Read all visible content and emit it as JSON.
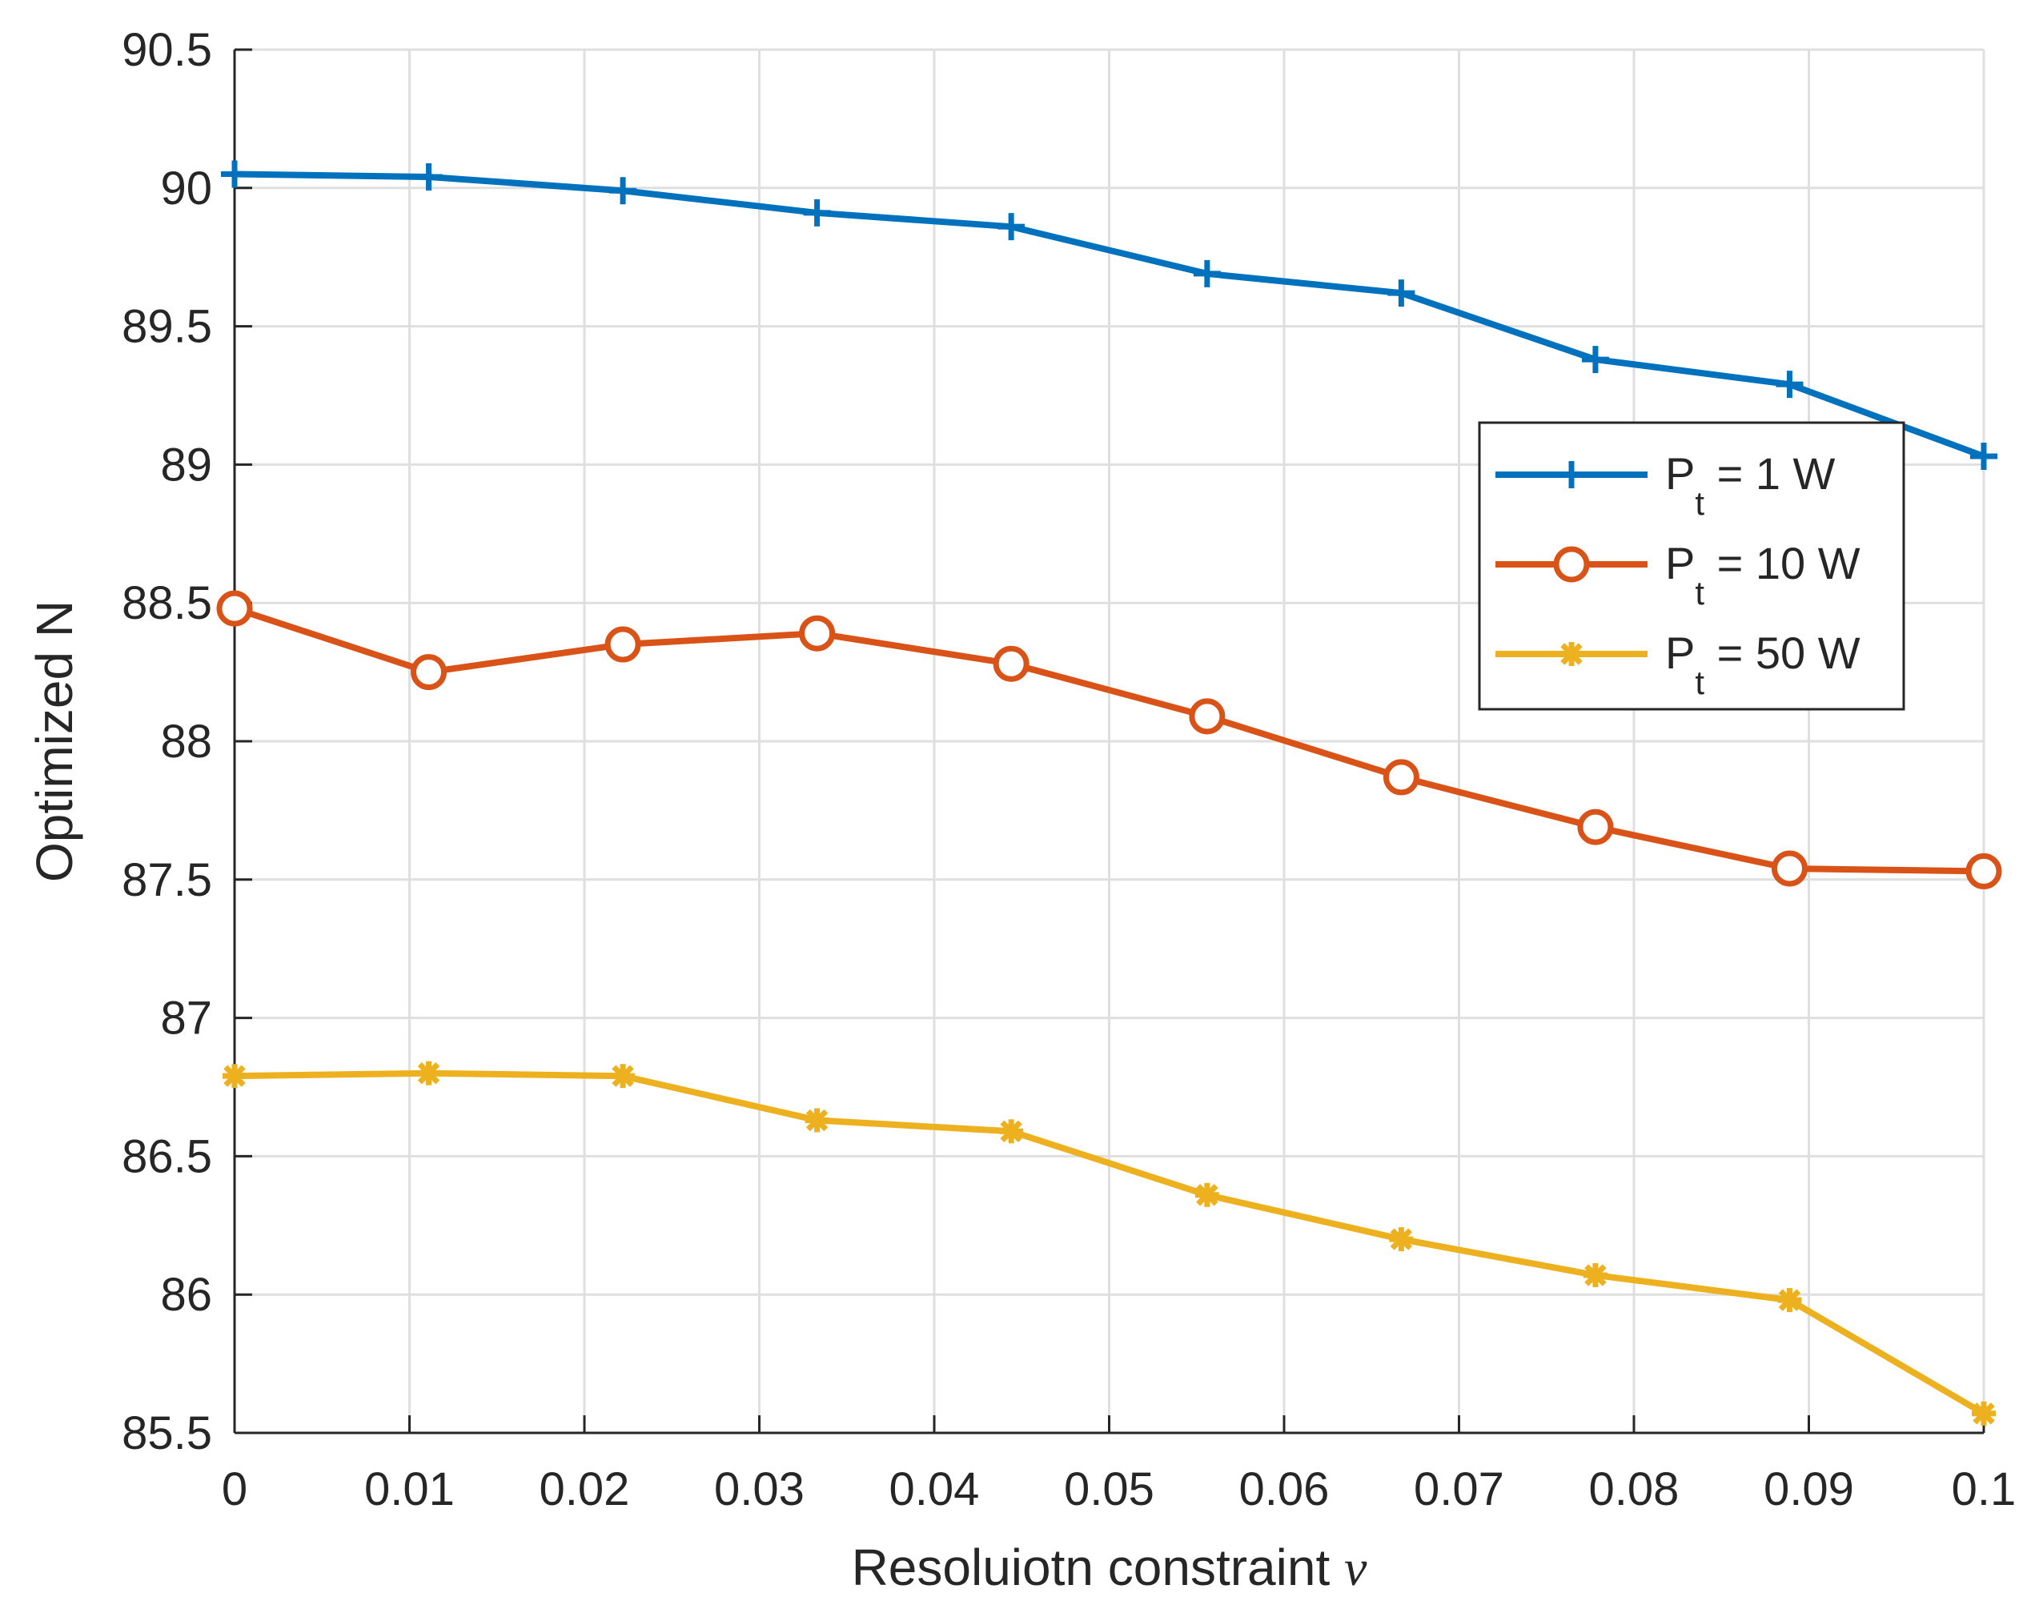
{
  "chart_data": {
    "type": "line",
    "title": "",
    "xlabel": "Resoluiotn constraint",
    "xlabel_symbol": "ν",
    "ylabel": "Optimized N",
    "xlim": [
      0,
      0.1
    ],
    "ylim": [
      85.5,
      90.5
    ],
    "grid": true,
    "x": [
      0,
      0.0111,
      0.0222,
      0.0333,
      0.0444,
      0.0556,
      0.0667,
      0.0778,
      0.0889,
      0.1
    ],
    "xticks": [
      "0",
      "0.01",
      "0.02",
      "0.03",
      "0.04",
      "0.05",
      "0.06",
      "0.07",
      "0.08",
      "0.09",
      "0.1"
    ],
    "xtick_values": [
      0,
      0.01,
      0.02,
      0.03,
      0.04,
      0.05,
      0.06,
      0.07,
      0.08,
      0.09,
      0.1
    ],
    "yticks": [
      "85.5",
      "86",
      "86.5",
      "87",
      "87.5",
      "88",
      "88.5",
      "89",
      "89.5",
      "90",
      "90.5"
    ],
    "ytick_values": [
      85.5,
      86,
      86.5,
      87,
      87.5,
      88,
      88.5,
      89,
      89.5,
      90,
      90.5
    ],
    "legend_position": "right",
    "series": [
      {
        "name": "P_t = 1 W",
        "label_main": "P",
        "label_sub": "t",
        "label_rest": " = 1 W",
        "color": "#0072BD",
        "marker": "plus",
        "values": [
          90.05,
          90.04,
          89.99,
          89.91,
          89.86,
          89.69,
          89.62,
          89.38,
          89.29,
          89.03
        ]
      },
      {
        "name": "P_t = 10 W",
        "label_main": "P",
        "label_sub": "t",
        "label_rest": " = 10 W",
        "color": "#D95319",
        "marker": "circle",
        "values": [
          88.48,
          88.25,
          88.35,
          88.39,
          88.28,
          88.09,
          87.87,
          87.69,
          87.54,
          87.53
        ]
      },
      {
        "name": "P_t = 50 W",
        "label_main": "P",
        "label_sub": "t",
        "label_rest": " = 50 W",
        "color": "#EDB120",
        "marker": "asterisk",
        "values": [
          86.79,
          86.8,
          86.79,
          86.63,
          86.59,
          86.36,
          86.2,
          86.07,
          85.98,
          85.57
        ]
      }
    ]
  }
}
